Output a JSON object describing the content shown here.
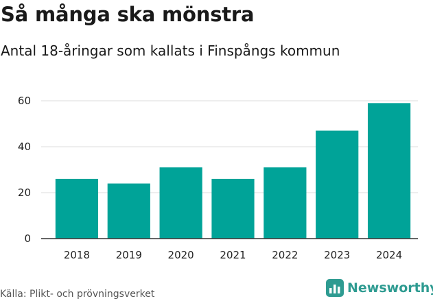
{
  "title": "Så många ska mönstra",
  "subtitle": "Antal 18-åringar som kallats i Finspångs kommun",
  "source": "Källa: Plikt- och prövningsverket",
  "brand": {
    "name": "Newsworthy",
    "icon": "bar-chart-icon"
  },
  "colors": {
    "bar": "#00a398",
    "brand": "#2e9b91",
    "grid": "#dddddd",
    "axis": "#333333"
  },
  "chart_data": {
    "type": "bar",
    "categories": [
      "2018",
      "2019",
      "2020",
      "2021",
      "2022",
      "2023",
      "2024"
    ],
    "values": [
      26,
      24,
      31,
      26,
      31,
      47,
      59
    ],
    "ylim": [
      0,
      60
    ],
    "yticks": [
      "0",
      "20",
      "40",
      "60"
    ],
    "grid": true,
    "title": "Så många ska mönstra",
    "subtitle": "Antal 18-åringar som kallats i Finspångs kommun",
    "xlabel": "",
    "ylabel": ""
  }
}
